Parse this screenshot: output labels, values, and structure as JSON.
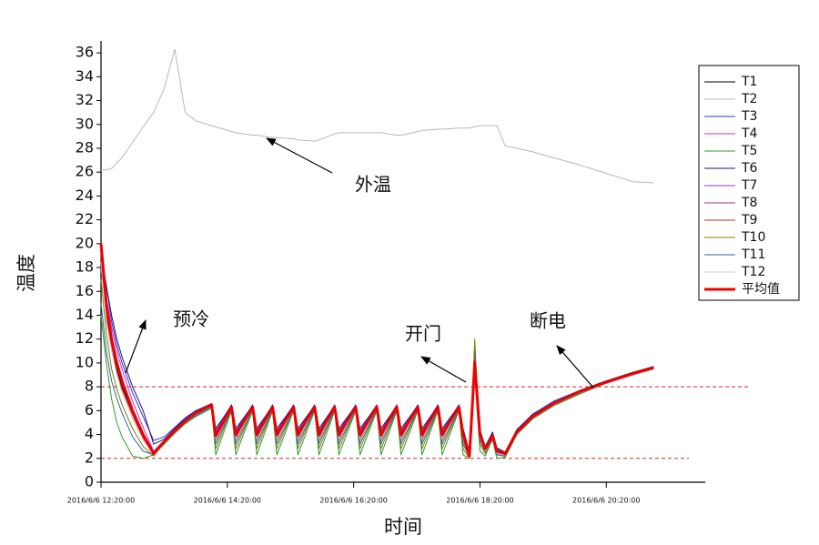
{
  "chart_data": {
    "type": "line",
    "xlabel": "时间",
    "ylabel": "温度",
    "xlim": [
      "2016/6/6 12:20:00",
      "2016/6/6 21:54:00"
    ],
    "xticks": [
      "2016/6/6 12:20:00",
      "2016/6/6 14:20:00",
      "2016/6/6 16:20:00",
      "2016/6/6 18:20:00",
      "2016/6/6 20:20:00"
    ],
    "ylim": [
      0,
      37
    ],
    "yticks": [
      0,
      2,
      4,
      6,
      8,
      10,
      12,
      14,
      16,
      18,
      20,
      22,
      24,
      26,
      28,
      30,
      32,
      34,
      36
    ],
    "legend": "right",
    "hlines": [
      8,
      2
    ],
    "hline_color": "#dd2222",
    "annotations": [
      "外温",
      "预冷",
      "开门",
      "断电"
    ],
    "x": [
      "2016/6/6 12:20:00",
      "2016/6/6 12:25:00",
      "2016/6/6 12:30:00",
      "2016/6/6 12:35:00",
      "2016/6/6 12:40:00",
      "2016/6/6 12:50:00",
      "2016/6/6 13:00:00",
      "2016/6/6 13:10:00",
      "2016/6/6 13:20:00",
      "2016/6/6 13:30:00",
      "2016/6/6 13:40:00",
      "2016/6/6 13:50:00",
      "2016/6/6 14:05:00",
      "2016/6/6 14:09:00",
      "2016/6/6 14:24:00",
      "2016/6/6 14:28:00",
      "2016/6/6 14:44:00",
      "2016/6/6 14:48:00",
      "2016/6/6 15:03:00",
      "2016/6/6 15:07:00",
      "2016/6/6 15:23:00",
      "2016/6/6 15:27:00",
      "2016/6/6 15:43:00",
      "2016/6/6 15:47:00",
      "2016/6/6 16:02:00",
      "2016/6/6 16:06:00",
      "2016/6/6 16:22:00",
      "2016/6/6 16:26:00",
      "2016/6/6 16:42:00",
      "2016/6/6 16:46:00",
      "2016/6/6 17:01:00",
      "2016/6/6 17:05:00",
      "2016/6/6 17:21:00",
      "2016/6/6 17:25:00",
      "2016/6/6 17:40:00",
      "2016/6/6 17:44:00",
      "2016/6/6 18:00:00",
      "2016/6/6 18:04:00",
      "2016/6/6 18:10:00",
      "2016/6/6 18:15:00",
      "2016/6/6 18:20:00",
      "2016/6/6 18:25:00",
      "2016/6/6 18:32:00",
      "2016/6/6 18:36:00",
      "2016/6/6 18:44:00",
      "2016/6/6 18:55:00",
      "2016/6/6 19:10:00",
      "2016/6/6 19:30:00",
      "2016/6/6 19:55:00",
      "2016/6/6 20:20:00",
      "2016/6/6 20:45:00",
      "2016/6/6 21:05:00"
    ],
    "series": [
      {
        "name": "T1",
        "color": "#000000",
        "width": 1,
        "values": [
          19.5,
          14,
          11.5,
          9.5,
          8,
          5.8,
          3.8,
          2.3,
          3.3,
          4.2,
          5,
          5.7,
          6.4,
          3.7,
          6.2,
          3.7,
          6.2,
          3.7,
          6.2,
          3.7,
          6.2,
          3.7,
          6.2,
          3.7,
          6.2,
          3.7,
          6.2,
          3.7,
          6.2,
          3.7,
          6.2,
          3.7,
          6.2,
          3.7,
          6.2,
          3.7,
          6.2,
          3.7,
          2.1,
          9,
          3.8,
          2.6,
          3.7,
          2.4,
          2.3,
          4.1,
          5.4,
          6.5,
          7.5,
          8.4,
          9.1,
          9.6
        ]
      },
      {
        "name": "T2",
        "color": "#b8b8b8",
        "width": 1,
        "values": [
          26.2,
          26.2,
          26.3,
          26.8,
          27.2,
          28.5,
          29.8,
          31,
          33,
          36.3,
          31,
          30.3,
          29.9,
          29.8,
          29.4,
          29.3,
          29.1,
          29.1,
          28.9,
          28.9,
          28.8,
          28.7,
          28.6,
          28.7,
          29.2,
          29.3,
          29.3,
          29.3,
          29.3,
          29.3,
          29.1,
          29.1,
          29.4,
          29.5,
          29.6,
          29.6,
          29.7,
          29.7,
          29.7,
          29.8,
          29.9,
          29.9,
          29.9,
          29.9,
          28.2,
          28,
          27.7,
          27.2,
          26.6,
          25.9,
          25.2,
          25.1
        ]
      },
      {
        "name": "T3",
        "color": "#3333cc",
        "width": 1,
        "values": [
          19,
          16.5,
          13.5,
          11.5,
          10,
          7.5,
          5.5,
          3.5,
          3.8,
          4.6,
          5.4,
          6,
          6.6,
          4.3,
          6.5,
          4.3,
          6.5,
          4.3,
          6.5,
          4.3,
          6.5,
          4.3,
          6.5,
          4.3,
          6.5,
          4.3,
          6.5,
          4.3,
          6.5,
          4.3,
          6.5,
          4.3,
          6.5,
          4.3,
          6.5,
          4.3,
          6.5,
          4.3,
          2.4,
          11,
          4.3,
          3,
          4.1,
          2.8,
          2.5,
          4.4,
          5.7,
          6.8,
          7.7,
          8.5,
          9.2,
          9.7
        ]
      },
      {
        "name": "T4",
        "color": "#cc33cc",
        "width": 1,
        "values": [
          19.5,
          15.5,
          13,
          11,
          9.5,
          6.8,
          4.6,
          2.6,
          3.5,
          4.4,
          5.2,
          5.9,
          6.5,
          4.2,
          6.4,
          4.2,
          6.4,
          4.2,
          6.4,
          4.2,
          6.4,
          4.2,
          6.4,
          4.2,
          6.4,
          4.2,
          6.4,
          4.2,
          6.4,
          4.2,
          6.4,
          4.2,
          6.4,
          4.2,
          6.4,
          4.2,
          6.4,
          4.2,
          2.3,
          10.5,
          4.1,
          2.9,
          4,
          2.7,
          2.4,
          4.3,
          5.6,
          6.7,
          7.6,
          8.4,
          9.1,
          9.6
        ]
      },
      {
        "name": "T5",
        "color": "#339933",
        "width": 1,
        "values": [
          14,
          10,
          7,
          5,
          3.8,
          2.2,
          2,
          2.3,
          3.2,
          4.1,
          4.9,
          5.5,
          6.2,
          2.3,
          6,
          2.3,
          6,
          2.3,
          6,
          2.3,
          6,
          2.3,
          6,
          2.3,
          6,
          2.3,
          6,
          2.3,
          6,
          2.3,
          6,
          2.3,
          6,
          2.3,
          6,
          2.3,
          6,
          2.3,
          2,
          9,
          2.6,
          2.2,
          3.6,
          2,
          2.1,
          4,
          5.3,
          6.4,
          7.4,
          8.3,
          9,
          9.5
        ]
      },
      {
        "name": "T6",
        "color": "#1a1a80",
        "width": 1,
        "values": [
          19,
          16.5,
          14,
          12,
          10.5,
          8,
          6,
          3.2,
          3.6,
          4.5,
          5.3,
          6,
          6.5,
          4.5,
          6.4,
          4.5,
          6.4,
          4.5,
          6.4,
          4.5,
          6.4,
          4.5,
          6.4,
          4.5,
          6.4,
          4.5,
          6.4,
          4.5,
          6.4,
          4.5,
          6.4,
          4.5,
          6.4,
          4.5,
          6.4,
          4.5,
          6.4,
          4.5,
          2.5,
          10.2,
          4.4,
          3,
          4.2,
          2.9,
          2.5,
          4.4,
          5.7,
          6.7,
          7.7,
          8.5,
          9.2,
          9.7
        ]
      },
      {
        "name": "T7",
        "color": "#9933cc",
        "width": 1,
        "values": [
          18,
          14,
          11.5,
          9.8,
          8.3,
          5.9,
          3.9,
          2.4,
          3.4,
          4.3,
          5.1,
          5.8,
          6.5,
          4.2,
          6.3,
          4.2,
          6.3,
          4.2,
          6.3,
          4.2,
          6.3,
          4.2,
          6.3,
          4.2,
          6.3,
          4.2,
          6.3,
          4.2,
          6.3,
          4.2,
          6.3,
          4.2,
          6.3,
          4.2,
          6.3,
          4.2,
          6.3,
          4.2,
          2.3,
          10,
          4.1,
          2.8,
          4,
          2.7,
          2.4,
          4.3,
          5.6,
          6.7,
          7.6,
          8.4,
          9.1,
          9.6
        ]
      },
      {
        "name": "T8",
        "color": "#993399",
        "width": 1,
        "values": [
          19.5,
          14.5,
          11.8,
          9.8,
          8.3,
          5.9,
          3.9,
          2.3,
          3.4,
          4.3,
          5.1,
          5.8,
          6.4,
          3.8,
          6.3,
          3.8,
          6.3,
          3.8,
          6.3,
          3.8,
          6.3,
          3.8,
          6.3,
          3.8,
          6.3,
          3.8,
          6.3,
          3.8,
          6.3,
          3.8,
          6.3,
          3.8,
          6.3,
          3.8,
          6.3,
          3.8,
          6.3,
          3.8,
          2.2,
          9.8,
          4,
          2.7,
          3.9,
          2.5,
          2.4,
          4.2,
          5.5,
          6.6,
          7.6,
          8.4,
          9.1,
          9.6
        ]
      },
      {
        "name": "T9",
        "color": "#aa3333",
        "width": 1,
        "values": [
          19,
          14,
          11,
          9.3,
          7.8,
          5.6,
          3.7,
          2.3,
          3.3,
          4.2,
          5,
          5.7,
          6.4,
          3.5,
          6.2,
          3.5,
          6.2,
          3.5,
          6.2,
          3.5,
          6.2,
          3.5,
          6.2,
          3.5,
          6.2,
          3.5,
          6.2,
          3.5,
          6.2,
          3.5,
          6.2,
          3.5,
          6.2,
          3.5,
          6.2,
          3.5,
          6.2,
          3.5,
          2.1,
          9.5,
          3.7,
          2.6,
          3.8,
          2.4,
          2.3,
          4.1,
          5.4,
          6.5,
          7.5,
          8.3,
          9,
          9.5
        ]
      },
      {
        "name": "T10",
        "color": "#808000",
        "width": 1,
        "values": [
          17,
          12.5,
          9.5,
          7.8,
          6.5,
          4.5,
          3,
          2.2,
          3.3,
          4.2,
          5,
          5.6,
          6.3,
          2.8,
          6.1,
          2.8,
          6.1,
          2.8,
          6.1,
          2.8,
          6.1,
          2.8,
          6.1,
          2.8,
          6.1,
          2.8,
          6.1,
          2.8,
          6.1,
          2.8,
          6.1,
          2.8,
          6.1,
          2.8,
          6.1,
          2.8,
          6.1,
          2.8,
          2,
          12,
          3.2,
          2.4,
          3.8,
          2.3,
          2.2,
          4.1,
          5.4,
          6.5,
          7.5,
          8.3,
          9,
          9.5
        ]
      },
      {
        "name": "T11",
        "color": "#336699",
        "width": 1,
        "values": [
          15,
          11,
          8.5,
          7,
          5.8,
          3.8,
          2.6,
          2.3,
          3.3,
          4.2,
          5,
          5.6,
          6.3,
          3.2,
          6.1,
          3.2,
          6.1,
          3.2,
          6.1,
          3.2,
          6.1,
          3.2,
          6.1,
          3.2,
          6.1,
          3.2,
          6.1,
          3.2,
          6.1,
          3.2,
          6.1,
          3.2,
          6.1,
          3.2,
          6.1,
          3.2,
          6.1,
          3.2,
          2.1,
          9.5,
          3.5,
          2.5,
          3.7,
          2.3,
          2.2,
          4.1,
          5.4,
          6.5,
          7.5,
          8.3,
          9,
          9.5
        ]
      },
      {
        "name": "T12",
        "color": "#cccccc",
        "width": 1,
        "values": [
          18.5,
          13.5,
          11,
          9,
          7.5,
          5.3,
          3.5,
          2.3,
          3.3,
          4.2,
          5,
          5.7,
          6.4,
          3.6,
          6.2,
          3.6,
          6.2,
          3.6,
          6.2,
          3.6,
          6.2,
          3.6,
          6.2,
          3.6,
          6.2,
          3.6,
          6.2,
          3.6,
          6.2,
          3.6,
          6.2,
          3.6,
          6.2,
          3.6,
          6.2,
          3.6,
          6.2,
          3.6,
          2.1,
          9.3,
          3.7,
          2.6,
          3.8,
          2.4,
          2.3,
          4.1,
          5.4,
          6.5,
          7.5,
          8.3,
          9,
          9.5
        ]
      },
      {
        "name": "平均值",
        "color": "#ee0000",
        "width": 3,
        "values": [
          20,
          15,
          12,
          10,
          8.5,
          6,
          4,
          2.4,
          3.4,
          4.3,
          5.1,
          5.8,
          6.5,
          3.9,
          6.3,
          4,
          6.3,
          4,
          6.3,
          4,
          6.3,
          4,
          6.3,
          4,
          6.3,
          4,
          6.3,
          4,
          6.3,
          4,
          6.3,
          4,
          6.3,
          4,
          6.3,
          4,
          6.3,
          4,
          2.2,
          10,
          4,
          2.8,
          3.9,
          2.6,
          2.4,
          4.2,
          5.5,
          6.6,
          7.6,
          8.4,
          9.1,
          9.6
        ]
      }
    ]
  }
}
